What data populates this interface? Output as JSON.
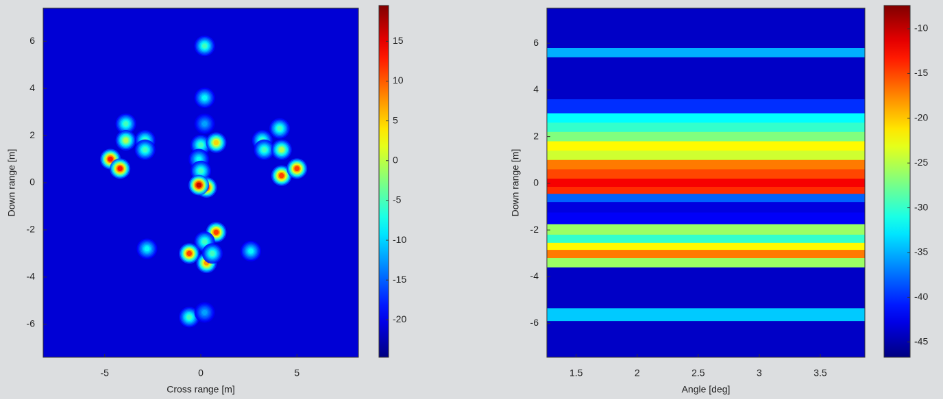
{
  "chart_data": [
    {
      "type": "heatmap-points",
      "xlabel": "Cross range [m]",
      "ylabel": "Down range [m]",
      "xlim": [
        -8.2,
        8.2
      ],
      "ylim": [
        -7.4,
        7.4
      ],
      "xticks": [
        -5,
        0,
        5
      ],
      "yticks": [
        6,
        4,
        2,
        0,
        -2,
        -4,
        -6
      ],
      "clim": [
        -24.7,
        19.5
      ],
      "cticks": [
        15,
        10,
        5,
        0,
        -5,
        -10,
        -15,
        -20
      ],
      "floor": -21,
      "points": [
        {
          "x": -4.7,
          "y": 1.0,
          "value": 14
        },
        {
          "x": -4.2,
          "y": 0.6,
          "value": 14
        },
        {
          "x": -3.9,
          "y": 2.5,
          "value": -5
        },
        {
          "x": -3.9,
          "y": 1.8,
          "value": 0
        },
        {
          "x": -2.9,
          "y": 1.8,
          "value": -5
        },
        {
          "x": -2.9,
          "y": 1.4,
          "value": -5
        },
        {
          "x": 0.2,
          "y": 5.8,
          "value": -5
        },
        {
          "x": 0.2,
          "y": 3.6,
          "value": -8
        },
        {
          "x": 0.2,
          "y": 2.5,
          "value": -12
        },
        {
          "x": 0.0,
          "y": 1.6,
          "value": -5
        },
        {
          "x": 0.8,
          "y": 1.7,
          "value": 5
        },
        {
          "x": -0.1,
          "y": 1.0,
          "value": -8
        },
        {
          "x": 0.0,
          "y": 0.5,
          "value": -5
        },
        {
          "x": 0.3,
          "y": -0.2,
          "value": 14
        },
        {
          "x": -0.1,
          "y": -0.1,
          "value": 17
        },
        {
          "x": 0.8,
          "y": -2.1,
          "value": 12
        },
        {
          "x": 0.2,
          "y": -2.5,
          "value": -5
        },
        {
          "x": -0.6,
          "y": -3.0,
          "value": 12
        },
        {
          "x": 0.3,
          "y": -3.4,
          "value": 8
        },
        {
          "x": 0.6,
          "y": -3.0,
          "value": -5
        },
        {
          "x": -2.8,
          "y": -2.8,
          "value": -8
        },
        {
          "x": 2.6,
          "y": -2.9,
          "value": -8
        },
        {
          "x": -0.6,
          "y": -5.7,
          "value": -5
        },
        {
          "x": 0.2,
          "y": -5.5,
          "value": -12
        },
        {
          "x": 3.2,
          "y": 1.8,
          "value": -5
        },
        {
          "x": 3.3,
          "y": 1.4,
          "value": -5
        },
        {
          "x": 4.1,
          "y": 2.3,
          "value": -5
        },
        {
          "x": 4.2,
          "y": 1.4,
          "value": 0
        },
        {
          "x": 4.2,
          "y": 0.3,
          "value": 12
        },
        {
          "x": 5.0,
          "y": 0.6,
          "value": 12
        }
      ]
    },
    {
      "type": "heatmap-rows",
      "xlabel": "Angle [deg]",
      "ylabel": "Down range [m]",
      "xlim": [
        1.26,
        3.865
      ],
      "ylim": [
        -7.45,
        7.5
      ],
      "xticks": [
        1.5,
        2,
        2.5,
        3,
        3.5
      ],
      "yticks": [
        6,
        4,
        2,
        0,
        -2,
        -4,
        -6
      ],
      "clim": [
        -46.7,
        -7.4
      ],
      "cticks": [
        -10,
        -15,
        -20,
        -25,
        -30,
        -35,
        -40,
        -45
      ],
      "y": [
        7.4,
        6,
        5.6,
        5.2,
        4,
        3.2,
        2.8,
        2.4,
        2,
        1.6,
        1.2,
        0.8,
        0.4,
        0,
        -0.3,
        -0.6,
        -1,
        -1.5,
        -2,
        -2.4,
        -2.7,
        -3,
        -3.4,
        -3.8,
        -5,
        -5.7,
        -6.1,
        -7.4
      ],
      "values": [
        -44,
        -44,
        -35,
        -44,
        -44,
        -40,
        -32,
        -30,
        -27,
        -22,
        -24,
        -17,
        -15,
        -12,
        -14,
        -38,
        -43,
        -42,
        -26,
        -30,
        -22,
        -17,
        -26,
        -44,
        -44,
        -34,
        -44,
        -44
      ]
    }
  ]
}
